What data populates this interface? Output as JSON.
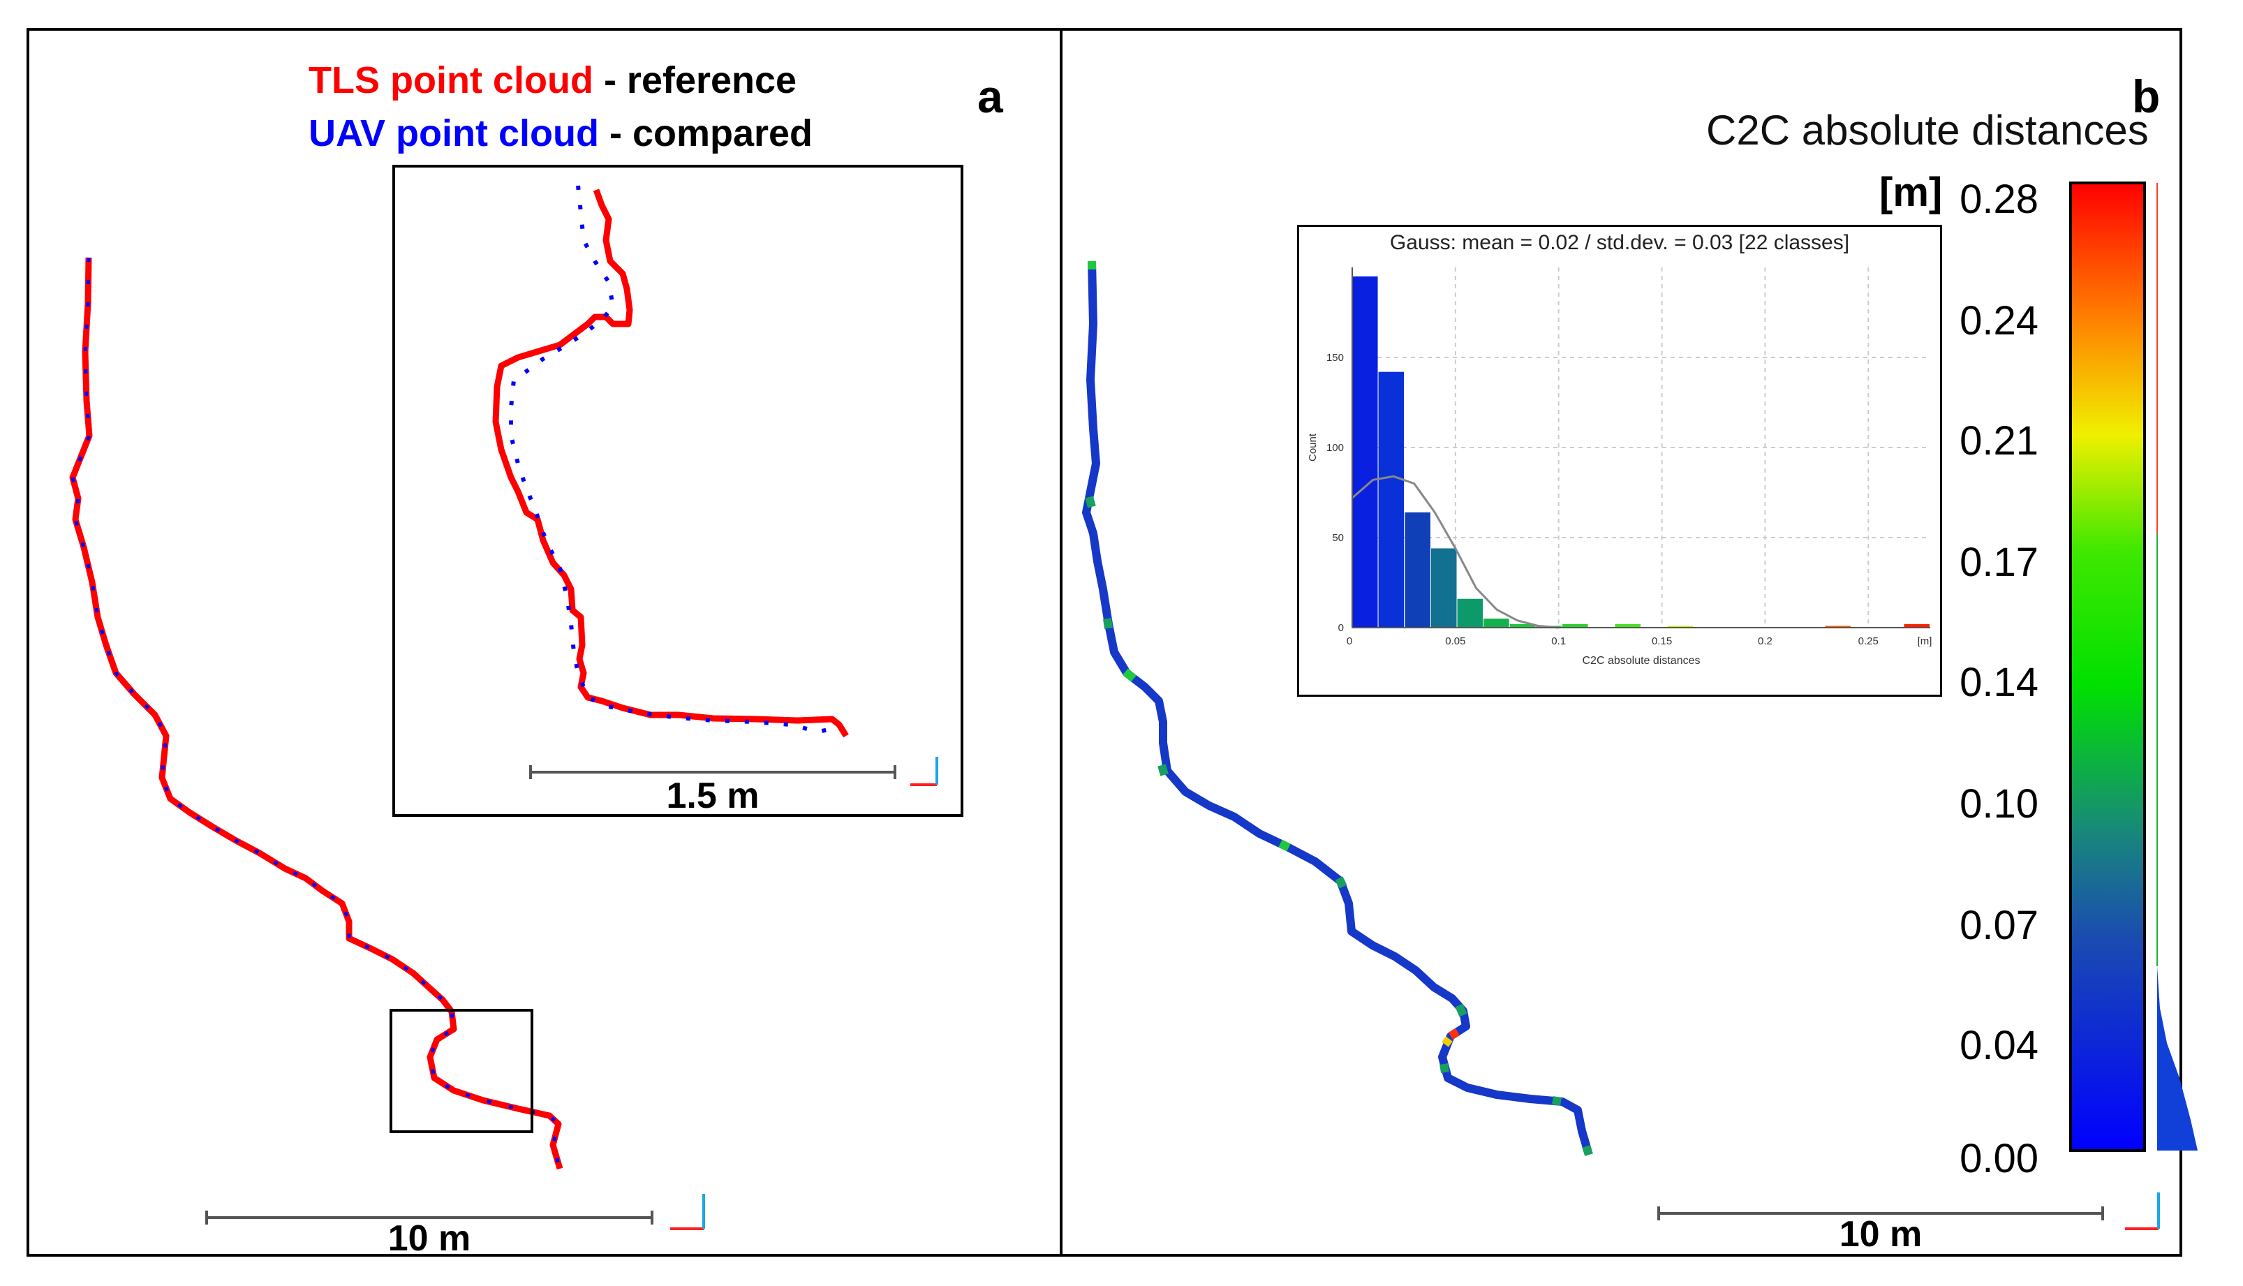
{
  "panel_a": {
    "letter": "a",
    "legend": {
      "tls_label": "TLS point cloud",
      "tls_suffix": " - reference",
      "uav_label": "UAV point cloud",
      "uav_suffix": " - compared",
      "tls_color": "#ff0000",
      "uav_color": "#0000ff"
    },
    "inset_scale": "1.5 m",
    "main_scale": "10 m"
  },
  "panel_b": {
    "letter": "b",
    "colorbar_title": "C2C absolute distances",
    "colorbar_unit": "[m]",
    "colorbar_ticks": [
      "0.28",
      "0.24",
      "0.21",
      "0.17",
      "0.14",
      "0.10",
      "0.07",
      "0.04",
      "0.00"
    ],
    "scale": "10 m"
  },
  "chart_data": {
    "type": "bar",
    "title": "Gauss: mean = 0.02 / std.dev. = 0.03 [22 classes]",
    "xlabel": "C2C absolute distances",
    "ylabel": "Count",
    "x_ticks": [
      "0.05",
      "0.1",
      "0.15",
      "0.2",
      "0.25"
    ],
    "x_unit": "[m]",
    "y_ticks": [
      "50",
      "100",
      "150"
    ],
    "xlim": [
      0,
      0.28
    ],
    "ylim": [
      0,
      200
    ],
    "bin_width": 0.0127,
    "bin_starts": [
      0.0,
      0.0127,
      0.0255,
      0.0382,
      0.0509,
      0.0636,
      0.0764,
      0.0891,
      0.1018,
      0.1145,
      0.1273,
      0.14,
      0.1527,
      0.1655,
      0.1782,
      0.1909,
      0.2036,
      0.2164,
      0.2291,
      0.2418,
      0.2545,
      0.2673
    ],
    "counts": [
      195,
      142,
      64,
      44,
      16,
      5,
      2,
      1,
      2,
      0,
      2,
      0,
      1,
      0,
      0,
      0,
      0,
      0,
      1,
      0,
      0,
      2
    ],
    "bar_colors": [
      "#0a20e0",
      "#0a30d8",
      "#1040b8",
      "#127090",
      "#0d9a6a",
      "#14b24c",
      "#1ec83c",
      "#1ec83c",
      "#28d030",
      "#28d030",
      "#48e020",
      "#48e020",
      "#c8f010",
      "#c8f010",
      "#ffd000",
      "#ffd000",
      "#ff9000",
      "#ff9000",
      "#ff6000",
      "#ff6000",
      "#ff3010",
      "#ff2000"
    ],
    "gauss_curve": {
      "x": [
        0.0,
        0.01,
        0.02,
        0.03,
        0.04,
        0.05,
        0.06,
        0.07,
        0.08,
        0.09,
        0.1
      ],
      "y": [
        72,
        82,
        84,
        80,
        64,
        44,
        22,
        10,
        4,
        1,
        0
      ]
    }
  }
}
